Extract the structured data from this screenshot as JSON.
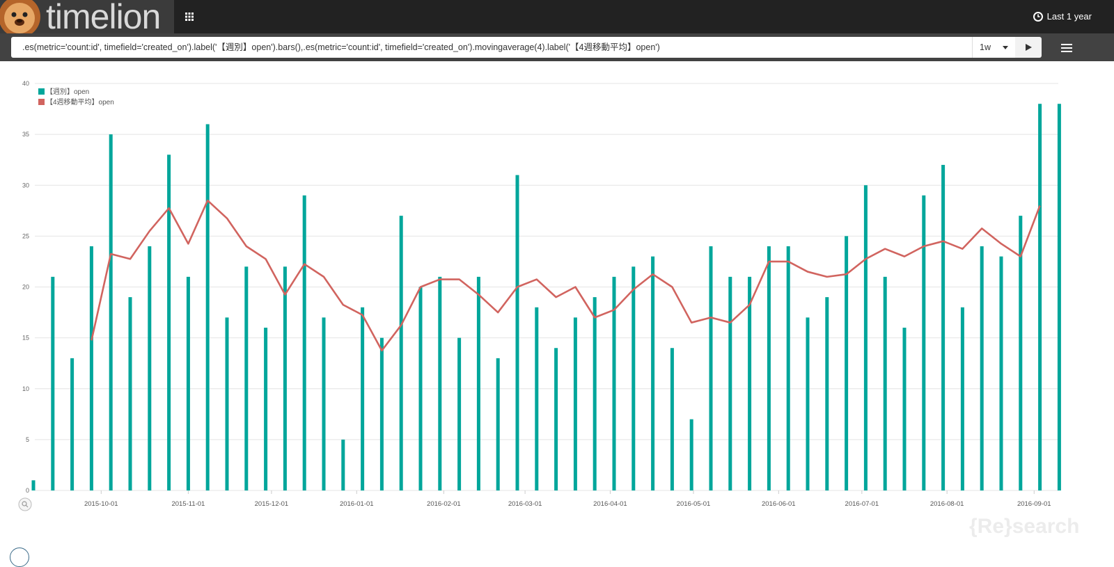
{
  "header": {
    "app_name": "timelion",
    "time_range": "Last 1 year"
  },
  "query": {
    "expression": ".es(metric='count:id', timefield='created_on').label('【週別】open').bars(),.es(metric='count:id', timefield='created_on').movingaverage(4).label('【4週移動平均】open')",
    "interval": "1w"
  },
  "icons": {
    "apps": "apps-grid-icon",
    "clock": "clock-icon",
    "run": "play-icon",
    "menu": "hamburger-menu-icon",
    "zoom": "magnifier-icon"
  },
  "colors": {
    "bars": "#00a69b",
    "line": "#d1645f",
    "topbar": "#222222",
    "querybar": "#424242"
  },
  "watermark": "{Re}search",
  "chart_data": {
    "type": "bar",
    "ylim": [
      0,
      40
    ],
    "yticks": [
      0,
      5,
      10,
      15,
      20,
      25,
      30,
      35,
      40
    ],
    "xticks": [
      {
        "label": "2015-10-01",
        "week": 3.5
      },
      {
        "label": "2015-11-01",
        "week": 8
      },
      {
        "label": "2015-12-01",
        "week": 12.3
      },
      {
        "label": "2016-01-01",
        "week": 16.7
      },
      {
        "label": "2016-02-01",
        "week": 21.2
      },
      {
        "label": "2016-03-01",
        "week": 25.4
      },
      {
        "label": "2016-04-01",
        "week": 29.8
      },
      {
        "label": "2016-05-01",
        "week": 34.1
      },
      {
        "label": "2016-06-01",
        "week": 38.5
      },
      {
        "label": "2016-07-01",
        "week": 42.8
      },
      {
        "label": "2016-08-01",
        "week": 47.2
      },
      {
        "label": "2016-09-01",
        "week": 51.7
      }
    ],
    "legend_position": "top-left",
    "series": [
      {
        "name": "【週別】open",
        "kind": "bars",
        "values": [
          1,
          21,
          13,
          24,
          35,
          19,
          24,
          33,
          21,
          36,
          17,
          22,
          16,
          22,
          29,
          17,
          5,
          18,
          15,
          27,
          20,
          21,
          15,
          21,
          13,
          31,
          18,
          14,
          17,
          19,
          21,
          22,
          23,
          14,
          7,
          24,
          21,
          21,
          24,
          24,
          17,
          19,
          25,
          30,
          21,
          16,
          29,
          32,
          18,
          24,
          23,
          27,
          38,
          38
        ]
      },
      {
        "name": "【4週移動平均】open",
        "kind": "line",
        "values": [
          null,
          null,
          null,
          14.75,
          23.25,
          22.75,
          25.5,
          27.75,
          24.25,
          28.5,
          26.75,
          24,
          22.75,
          19.25,
          22.25,
          21,
          18.25,
          17.25,
          13.75,
          16.25,
          20,
          20.75,
          20.75,
          19.25,
          17.5,
          20,
          20.75,
          19,
          20,
          17,
          17.75,
          19.75,
          21.25,
          20,
          16.5,
          17,
          16.5,
          18.25,
          22.5,
          22.5,
          21.5,
          21,
          21.25,
          22.75,
          23.75,
          23,
          24,
          24.5,
          23.75,
          25.75,
          24.25,
          23,
          28,
          null
        ]
      }
    ]
  }
}
